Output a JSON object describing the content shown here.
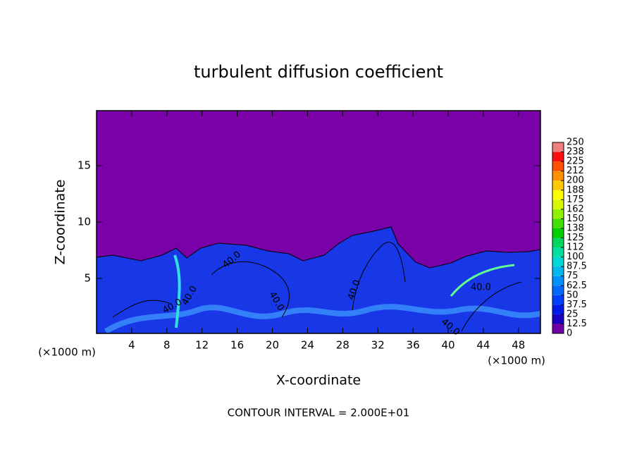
{
  "chart_data": {
    "type": "contour",
    "title": "turbulent diffusion coefficient",
    "x_label": "X-coordinate",
    "y_label": "Z-coordinate",
    "x_unit": "(×1000 m)",
    "y_unit": "(×1000 m)",
    "footer": "CONTOUR INTERVAL = 2.000E+01",
    "contour_labels": [
      "40.0",
      "40.0",
      "40.0",
      "40.0",
      "40.0",
      "40.0",
      "40.0"
    ],
    "xlim": [
      0,
      50.5
    ],
    "xticks": [
      4,
      8,
      12,
      16,
      20,
      24,
      28,
      32,
      36,
      40,
      44,
      48
    ],
    "ylim": [
      0.125,
      19.875
    ],
    "yticks": [
      5,
      10,
      15
    ],
    "colorbar": {
      "levels": [
        0,
        12.5,
        25,
        37.5,
        50,
        62.5,
        75,
        87.5,
        100,
        {
          "value": 112.5,
          "label": "112"
        },
        125,
        {
          "value": 137.5,
          "label": "138"
        },
        150,
        {
          "value": 162.5,
          "label": "162"
        },
        175,
        {
          "value": 187.5,
          "label": "188"
        },
        200,
        {
          "value": 212.5,
          "label": "212"
        },
        225,
        {
          "value": 237.5,
          "label": "238"
        },
        250
      ],
      "colors": [
        "#7000a8",
        "#1c00c0",
        "#0018e8",
        "#0040ff",
        "#0068ff",
        "#0090ff",
        "#00b8f0",
        "#00d8d8",
        "#00e0a0",
        "#00d860",
        "#00d000",
        "#40e000",
        "#90f000",
        "#d8f800",
        "#ffff00",
        "#ffc800",
        "#ff9000",
        "#ff5000",
        "#ff1010",
        "#f08080"
      ]
    }
  }
}
